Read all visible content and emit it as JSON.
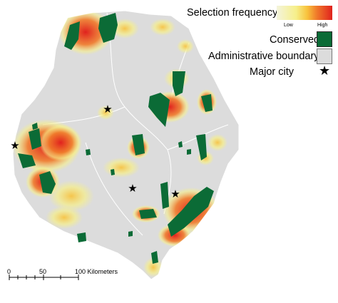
{
  "legend": {
    "title": "Selection frequency",
    "low": "Low",
    "high": "High",
    "conserved": "Conserved",
    "administrative_boundary": "Administrative boundary",
    "major_city": "Major city",
    "city_symbol": "★"
  },
  "scale_bar": {
    "labels": [
      "0",
      "50",
      "100 Kilometers"
    ]
  },
  "colors": {
    "land": "#dcdcdc",
    "conserved": "#0b6b36",
    "high": "#e0221e",
    "mid": "#f07a2a",
    "low": "#f6ef8a"
  }
}
